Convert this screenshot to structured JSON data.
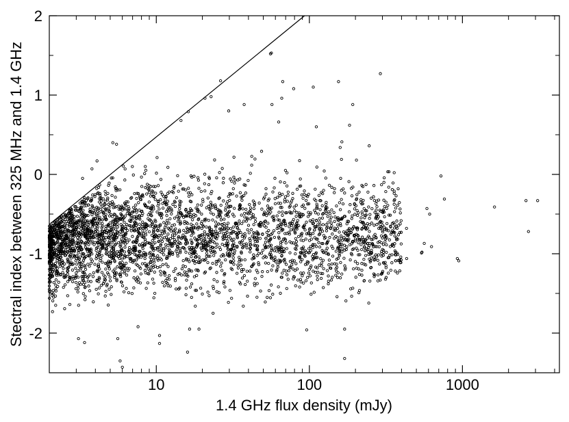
{
  "chart_data": {
    "type": "scatter",
    "title": "",
    "xlabel": "1.4 GHz flux density (mJy)",
    "ylabel": "Stectral index between 325 MHz and 1.4 GHz",
    "xscale": "log",
    "xlim": [
      2,
      4300
    ],
    "ylim": [
      -2.5,
      2
    ],
    "grid": false,
    "legend": "none",
    "x_ticks": [
      {
        "value": 10,
        "label": "10"
      },
      {
        "value": 100,
        "label": "100"
      },
      {
        "value": 1000,
        "label": "1000"
      }
    ],
    "y_ticks": [
      {
        "value": -2,
        "label": "-2"
      },
      {
        "value": -1,
        "label": "-1"
      },
      {
        "value": 0,
        "label": "0"
      },
      {
        "value": 1,
        "label": "1"
      },
      {
        "value": 2,
        "label": "2"
      }
    ],
    "reference_line": {
      "x": [
        2,
        93
      ],
      "y": [
        -0.63,
        2.0
      ]
    },
    "marker_color": "#000000",
    "series": [
      {
        "values": [
          [
            5.2,
            0.4
          ],
          [
            5.5,
            0.38
          ],
          [
            4.1,
            0.17
          ],
          [
            3.8,
            0.07
          ],
          [
            3.3,
            -0.05
          ],
          [
            14.5,
            0.68
          ],
          [
            16.2,
            0.79
          ],
          [
            26.3,
            1.18
          ],
          [
            55.7,
            1.52
          ],
          [
            56.5,
            1.53
          ],
          [
            291,
            1.27
          ],
          [
            155,
            1.17
          ],
          [
            67,
            1.17
          ],
          [
            79,
            1.08
          ],
          [
            106,
            1.1
          ],
          [
            192,
            0.88
          ],
          [
            57,
            0.88
          ],
          [
            37.5,
            0.88
          ],
          [
            29.7,
            0.8
          ],
          [
            20.8,
            0.96
          ],
          [
            22.8,
            0.98
          ],
          [
            66,
            0.96
          ],
          [
            183,
            0.62
          ],
          [
            111,
            0.6
          ],
          [
            63,
            0.66
          ],
          [
            246,
            0.36
          ],
          [
            163,
            0.41
          ],
          [
            162,
            0.19
          ],
          [
            159,
            0.34
          ],
          [
            203,
            0.18
          ],
          [
            160,
            -0.05
          ],
          [
            162,
            -0.2
          ],
          [
            724,
            -0.02
          ],
          [
            296,
            -0.13
          ],
          [
            264,
            -0.14
          ],
          [
            586,
            -0.43
          ],
          [
            611,
            -0.5
          ],
          [
            762,
            -0.31
          ],
          [
            1620,
            -0.41
          ],
          [
            2600,
            -0.33
          ],
          [
            3100,
            -0.33
          ],
          [
            2700,
            -0.72
          ],
          [
            926,
            -1.06
          ],
          [
            946,
            -1.09
          ],
          [
            432,
            -1.06
          ],
          [
            431,
            -0.68
          ],
          [
            628,
            -0.91
          ],
          [
            563,
            -0.87
          ],
          [
            544,
            -0.98
          ],
          [
            540,
            -0.99
          ],
          [
            302,
            -0.48
          ],
          [
            321,
            -0.62
          ],
          [
            284,
            -0.68
          ],
          [
            307,
            -1.12
          ],
          [
            313,
            -1.11
          ],
          [
            170,
            -1.95
          ],
          [
            170,
            -2.32
          ],
          [
            96,
            -1.96
          ],
          [
            37,
            -1.66
          ],
          [
            35.5,
            -1.38
          ],
          [
            28,
            -1.25
          ],
          [
            23.5,
            -1.75
          ],
          [
            19,
            -1.95
          ],
          [
            16.5,
            -1.95
          ],
          [
            16,
            -2.24
          ],
          [
            10.5,
            -2.13
          ],
          [
            10.5,
            -2.03
          ],
          [
            7.6,
            -1.92
          ],
          [
            5.6,
            -2.07
          ],
          [
            5.8,
            -2.35
          ],
          [
            6.0,
            -2.43
          ],
          [
            3.1,
            -2.07
          ],
          [
            3.4,
            -2.12
          ],
          [
            2.1,
            -1.73
          ],
          [
            2.2,
            -1.65
          ],
          [
            48,
            -1.47
          ],
          [
            53,
            -1.55
          ],
          [
            35,
            -1.36
          ],
          [
            44,
            -1.4
          ],
          [
            17,
            -1.55
          ]
        ]
      }
    ]
  }
}
